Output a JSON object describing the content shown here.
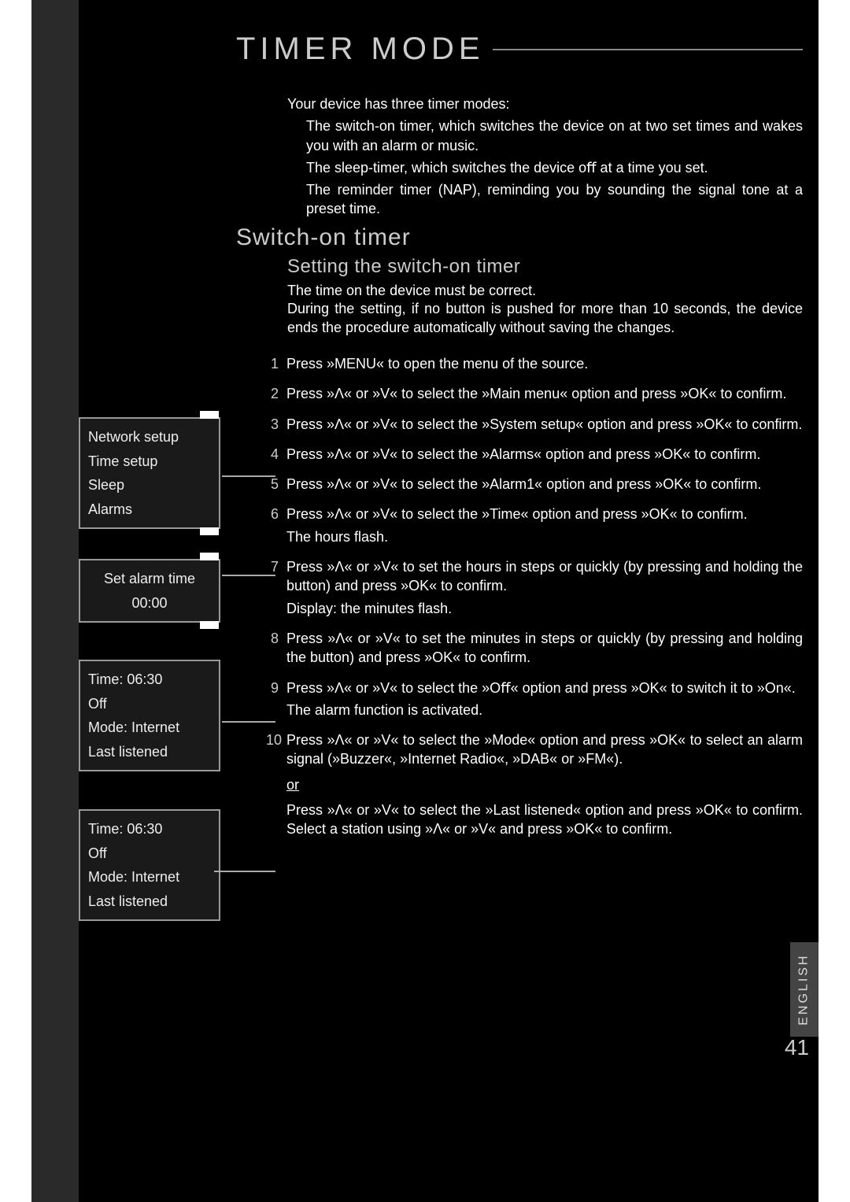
{
  "title": "TIMER MODE",
  "intro": {
    "line1": "Your device has three timer modes:",
    "sub1": "The switch-on timer, which switches the device on at two set times and wakes you with an alarm or music.",
    "sub2": "The sleep-timer, which switches the device oﬀ at a time you set.",
    "sub3": "The reminder timer (NAP), reminding you by sounding the signal tone at a preset time."
  },
  "section": {
    "h1": "Switch-on timer",
    "h2": "Setting the switch-on timer",
    "note1": "The time on the device must be correct.",
    "note2": "During the setting, if no button is pushed for more than 10 seconds, the device ends the procedure automatically without saving the changes."
  },
  "steps": [
    {
      "n": "1",
      "body": "Press »MENU« to open the menu of the source."
    },
    {
      "n": "2",
      "body": "Press »Λ« or »V« to select the »Main menu« option and press »OK« to conﬁrm."
    },
    {
      "n": "3",
      "body": "Press »Λ« or »V« to select the »System setup« option and press »OK« to conﬁrm."
    },
    {
      "n": "4",
      "body": "Press »Λ« or »V« to select the »Alarms« option and press »OK« to conﬁrm."
    },
    {
      "n": "5",
      "body": "Press »Λ« or »V« to select the »Alarm1« option and press »OK« to conﬁrm."
    },
    {
      "n": "6",
      "body": "Press »Λ« or »V« to select the »Time« option and press »OK« to conﬁrm.",
      "sub": "The hours ﬂash."
    },
    {
      "n": "7",
      "body": "Press »Λ« or »V« to set the hours in steps or quickly (by pressing and holding the button) and press »OK« to conﬁrm.",
      "sub": "Display: the minutes ﬂash."
    },
    {
      "n": "8",
      "body": "Press »Λ« or »V« to set the minutes in steps or quickly (by pressing and holding the button) and press »OK« to conﬁrm."
    },
    {
      "n": "9",
      "body": "Press »Λ« or »V« to select the »Oﬀ« option and press »OK« to switch it to »On«.",
      "sub": "The alarm function is activated."
    },
    {
      "n": "10",
      "body": "Press »Λ« or »V« to select the »Mode« option and press »OK« to select an alarm signal (»Buzzer«, »Internet Radio«, »DAB« or »FM«).",
      "or": "or",
      "alt": "Press »Λ« or »V« to select the »Last listened« option and press »OK« to conﬁrm. Select a station using »Λ« or »V« and press »OK« to conﬁrm."
    }
  ],
  "displays": {
    "box1": [
      "Network setup",
      "Time setup",
      "Sleep",
      "Alarms"
    ],
    "box2": [
      "Set alarm time",
      "00:00"
    ],
    "box3": [
      "Time: 06:30",
      "Off",
      "Mode: Internet",
      "Last listened"
    ],
    "box4": [
      "Time: 06:30",
      "Off",
      "Mode: Internet",
      "Last listened"
    ]
  },
  "lang": "ENGLISH",
  "page": "41"
}
